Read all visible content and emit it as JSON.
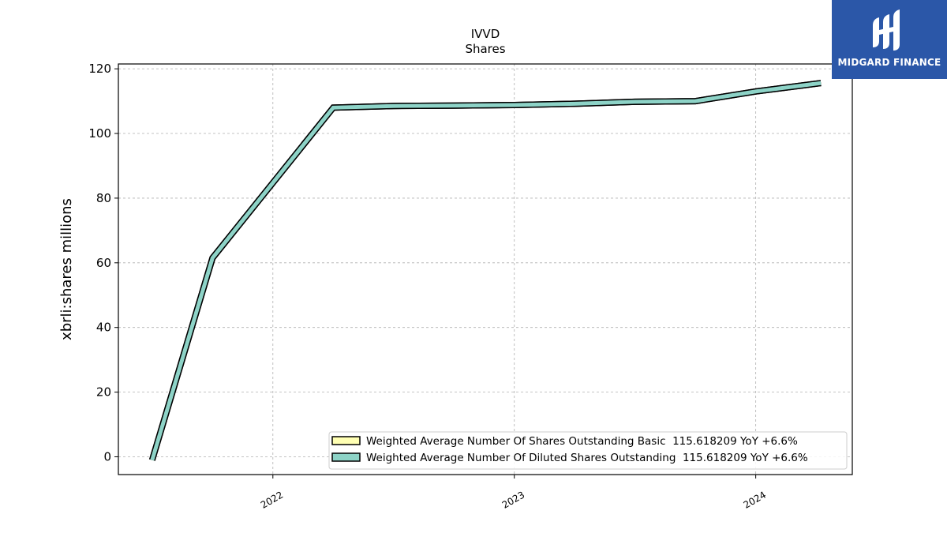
{
  "chart_data": {
    "type": "line",
    "title": "IVVD",
    "subtitle": "Shares",
    "ylabel": "xbrli:shares millions",
    "xlabel": "",
    "xlim": [
      2021.36,
      2024.4
    ],
    "ylim": [
      -5.5,
      121.5
    ],
    "yticks": [
      0,
      20,
      40,
      60,
      80,
      100,
      120
    ],
    "xticks": [
      {
        "value": 2022.0,
        "label": "2022"
      },
      {
        "value": 2023.0,
        "label": "2023"
      },
      {
        "value": 2024.0,
        "label": "2024"
      }
    ],
    "grid": true,
    "legend_position": "lower-right",
    "series": [
      {
        "name": "Weighted Average Number Of Shares Outstanding Basic  115.618209 YoY +6.6%",
        "color": "#ffffb3",
        "x": [
          2021.5,
          2021.75,
          2022.25,
          2022.5,
          2022.75,
          2023.0,
          2023.25,
          2023.5,
          2023.75,
          2024.0,
          2024.27
        ],
        "values": [
          -1,
          61.5,
          108,
          108.5,
          108.6,
          108.8,
          109.2,
          109.8,
          110,
          113,
          115.6
        ]
      },
      {
        "name": "Weighted Average Number Of Diluted Shares Outstanding  115.618209 YoY +6.6%",
        "color": "#8dd3c7",
        "x": [
          2021.5,
          2021.75,
          2022.25,
          2022.5,
          2022.75,
          2023.0,
          2023.25,
          2023.5,
          2023.75,
          2024.0,
          2024.27
        ],
        "values": [
          -1,
          61.5,
          108,
          108.5,
          108.6,
          108.8,
          109.2,
          109.8,
          110,
          113,
          115.6
        ]
      }
    ]
  },
  "logo": {
    "text": "MIDGARD FINANCE",
    "background": "#2b57a8"
  }
}
